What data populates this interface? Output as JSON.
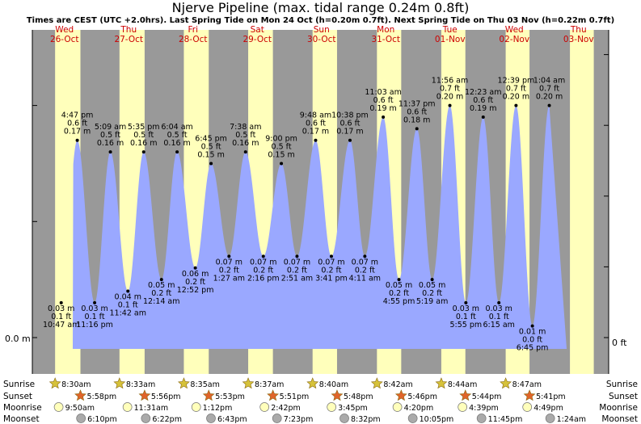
{
  "title": "Njerve Pipeline (max. tidal range 0.24m 0.8ft)",
  "subtitle": "Times are CEST (UTC +2.0hrs). Last Spring Tide on Mon 24 Oct (h=0.20m 0.7ft). Next Spring Tide on Thu 03 Nov (h=0.22m 0.7ft)",
  "colors": {
    "night": "#999999",
    "day": "#ffffbb",
    "water": "#9aa8ff",
    "daytext": "#cc0000",
    "sunrise_star": "#d6c23a",
    "sunset_star": "#e0642a",
    "moonrise": "#ffffbb",
    "moonset": "#aaaaaa"
  },
  "chart_data": {
    "type": "area",
    "y_axis_left": {
      "label": "0.0 m",
      "value_m": 0.0
    },
    "y_axis_right": {
      "label": "0 ft",
      "value_ft": 0.0
    },
    "ylim_m": [
      0.0,
      0.25
    ],
    "days": [
      {
        "dow": "Wed",
        "date": "26-Oct"
      },
      {
        "dow": "Thu",
        "date": "27-Oct"
      },
      {
        "dow": "Fri",
        "date": "28-Oct"
      },
      {
        "dow": "Sat",
        "date": "29-Oct"
      },
      {
        "dow": "Sun",
        "date": "30-Oct"
      },
      {
        "dow": "Mon",
        "date": "31-Oct"
      },
      {
        "dow": "Tue",
        "date": "01-Nov"
      },
      {
        "dow": "Wed",
        "date": "02-Nov"
      },
      {
        "dow": "Thu",
        "date": "03-Nov"
      }
    ],
    "tides": [
      {
        "type": "low",
        "time": "10:47 am",
        "ft": "0.1 ft",
        "m": 0.03
      },
      {
        "type": "high",
        "time": "4:47 pm",
        "ft": "0.6 ft",
        "m": 0.17
      },
      {
        "type": "low",
        "time": "11:16 pm",
        "ft": "0.1 ft",
        "m": 0.03
      },
      {
        "type": "high",
        "time": "5:09 am",
        "ft": "0.5 ft",
        "m": 0.16
      },
      {
        "type": "low",
        "time": "11:42 am",
        "ft": "0.1 ft",
        "m": 0.04
      },
      {
        "type": "high",
        "time": "5:35 pm",
        "ft": "0.5 ft",
        "m": 0.16
      },
      {
        "type": "low",
        "time": "12:14 am",
        "ft": "0.2 ft",
        "m": 0.05
      },
      {
        "type": "high",
        "time": "6:04 am",
        "ft": "0.5 ft",
        "m": 0.16
      },
      {
        "type": "low",
        "time": "12:52 pm",
        "ft": "0.2 ft",
        "m": 0.06
      },
      {
        "type": "high",
        "time": "6:45 pm",
        "ft": "0.5 ft",
        "m": 0.15
      },
      {
        "type": "low",
        "time": "1:27 am",
        "ft": "0.2 ft",
        "m": 0.07
      },
      {
        "type": "high",
        "time": "7:38 am",
        "ft": "0.5 ft",
        "m": 0.16
      },
      {
        "type": "low",
        "time": "2:16 pm",
        "ft": "0.2 ft",
        "m": 0.07
      },
      {
        "type": "high",
        "time": "9:00 pm",
        "ft": "0.5 ft",
        "m": 0.15
      },
      {
        "type": "low",
        "time": "2:51 am",
        "ft": "0.2 ft",
        "m": 0.07
      },
      {
        "type": "high",
        "time": "9:48 am",
        "ft": "0.6 ft",
        "m": 0.17
      },
      {
        "type": "low",
        "time": "3:41 pm",
        "ft": "0.2 ft",
        "m": 0.07
      },
      {
        "type": "high",
        "time": "10:38 pm",
        "ft": "0.6 ft",
        "m": 0.17
      },
      {
        "type": "low",
        "time": "4:11 am",
        "ft": "0.2 ft",
        "m": 0.07
      },
      {
        "type": "high",
        "time": "11:03 am",
        "ft": "0.6 ft",
        "m": 0.19
      },
      {
        "type": "low",
        "time": "4:55 pm",
        "ft": "0.2 ft",
        "m": 0.05
      },
      {
        "type": "high",
        "time": "11:37 pm",
        "ft": "0.6 ft",
        "m": 0.18
      },
      {
        "type": "low",
        "time": "5:19 am",
        "ft": "0.2 ft",
        "m": 0.05
      },
      {
        "type": "high",
        "time": "11:56 am",
        "ft": "0.7 ft",
        "m": 0.2
      },
      {
        "type": "low",
        "time": "5:55 pm",
        "ft": "0.1 ft",
        "m": 0.03
      },
      {
        "type": "high",
        "time": "12:23 am",
        "ft": "0.6 ft",
        "m": 0.19
      },
      {
        "type": "low",
        "time": "6:15 am",
        "ft": "0.1 ft",
        "m": 0.03
      },
      {
        "type": "high",
        "time": "12:39 pm",
        "ft": "0.7 ft",
        "m": 0.2
      },
      {
        "type": "low",
        "time": "6:45 pm",
        "ft": "0.0 ft",
        "m": 0.01
      },
      {
        "type": "high",
        "time": "1:04 am",
        "ft": "0.7 ft",
        "m": 0.2
      }
    ]
  },
  "astro": {
    "row_labels": {
      "sunrise": "Sunrise",
      "sunset": "Sunset",
      "moonrise": "Moonrise",
      "moonset": "Moonset"
    },
    "sunrise": [
      "8:30am",
      "8:33am",
      "8:35am",
      "8:37am",
      "8:40am",
      "8:42am",
      "8:44am",
      "8:47am"
    ],
    "sunset": [
      "5:58pm",
      "5:56pm",
      "5:53pm",
      "5:51pm",
      "5:48pm",
      "5:46pm",
      "5:44pm",
      "5:41pm"
    ],
    "moonrise": [
      "9:50am",
      "11:31am",
      "1:12pm",
      "2:42pm",
      "3:45pm",
      "4:20pm",
      "4:39pm",
      "4:49pm"
    ],
    "moonset": [
      "6:10pm",
      "6:22pm",
      "6:43pm",
      "7:23pm",
      "8:32pm",
      "10:05pm",
      "11:45pm",
      "1:24am"
    ]
  }
}
